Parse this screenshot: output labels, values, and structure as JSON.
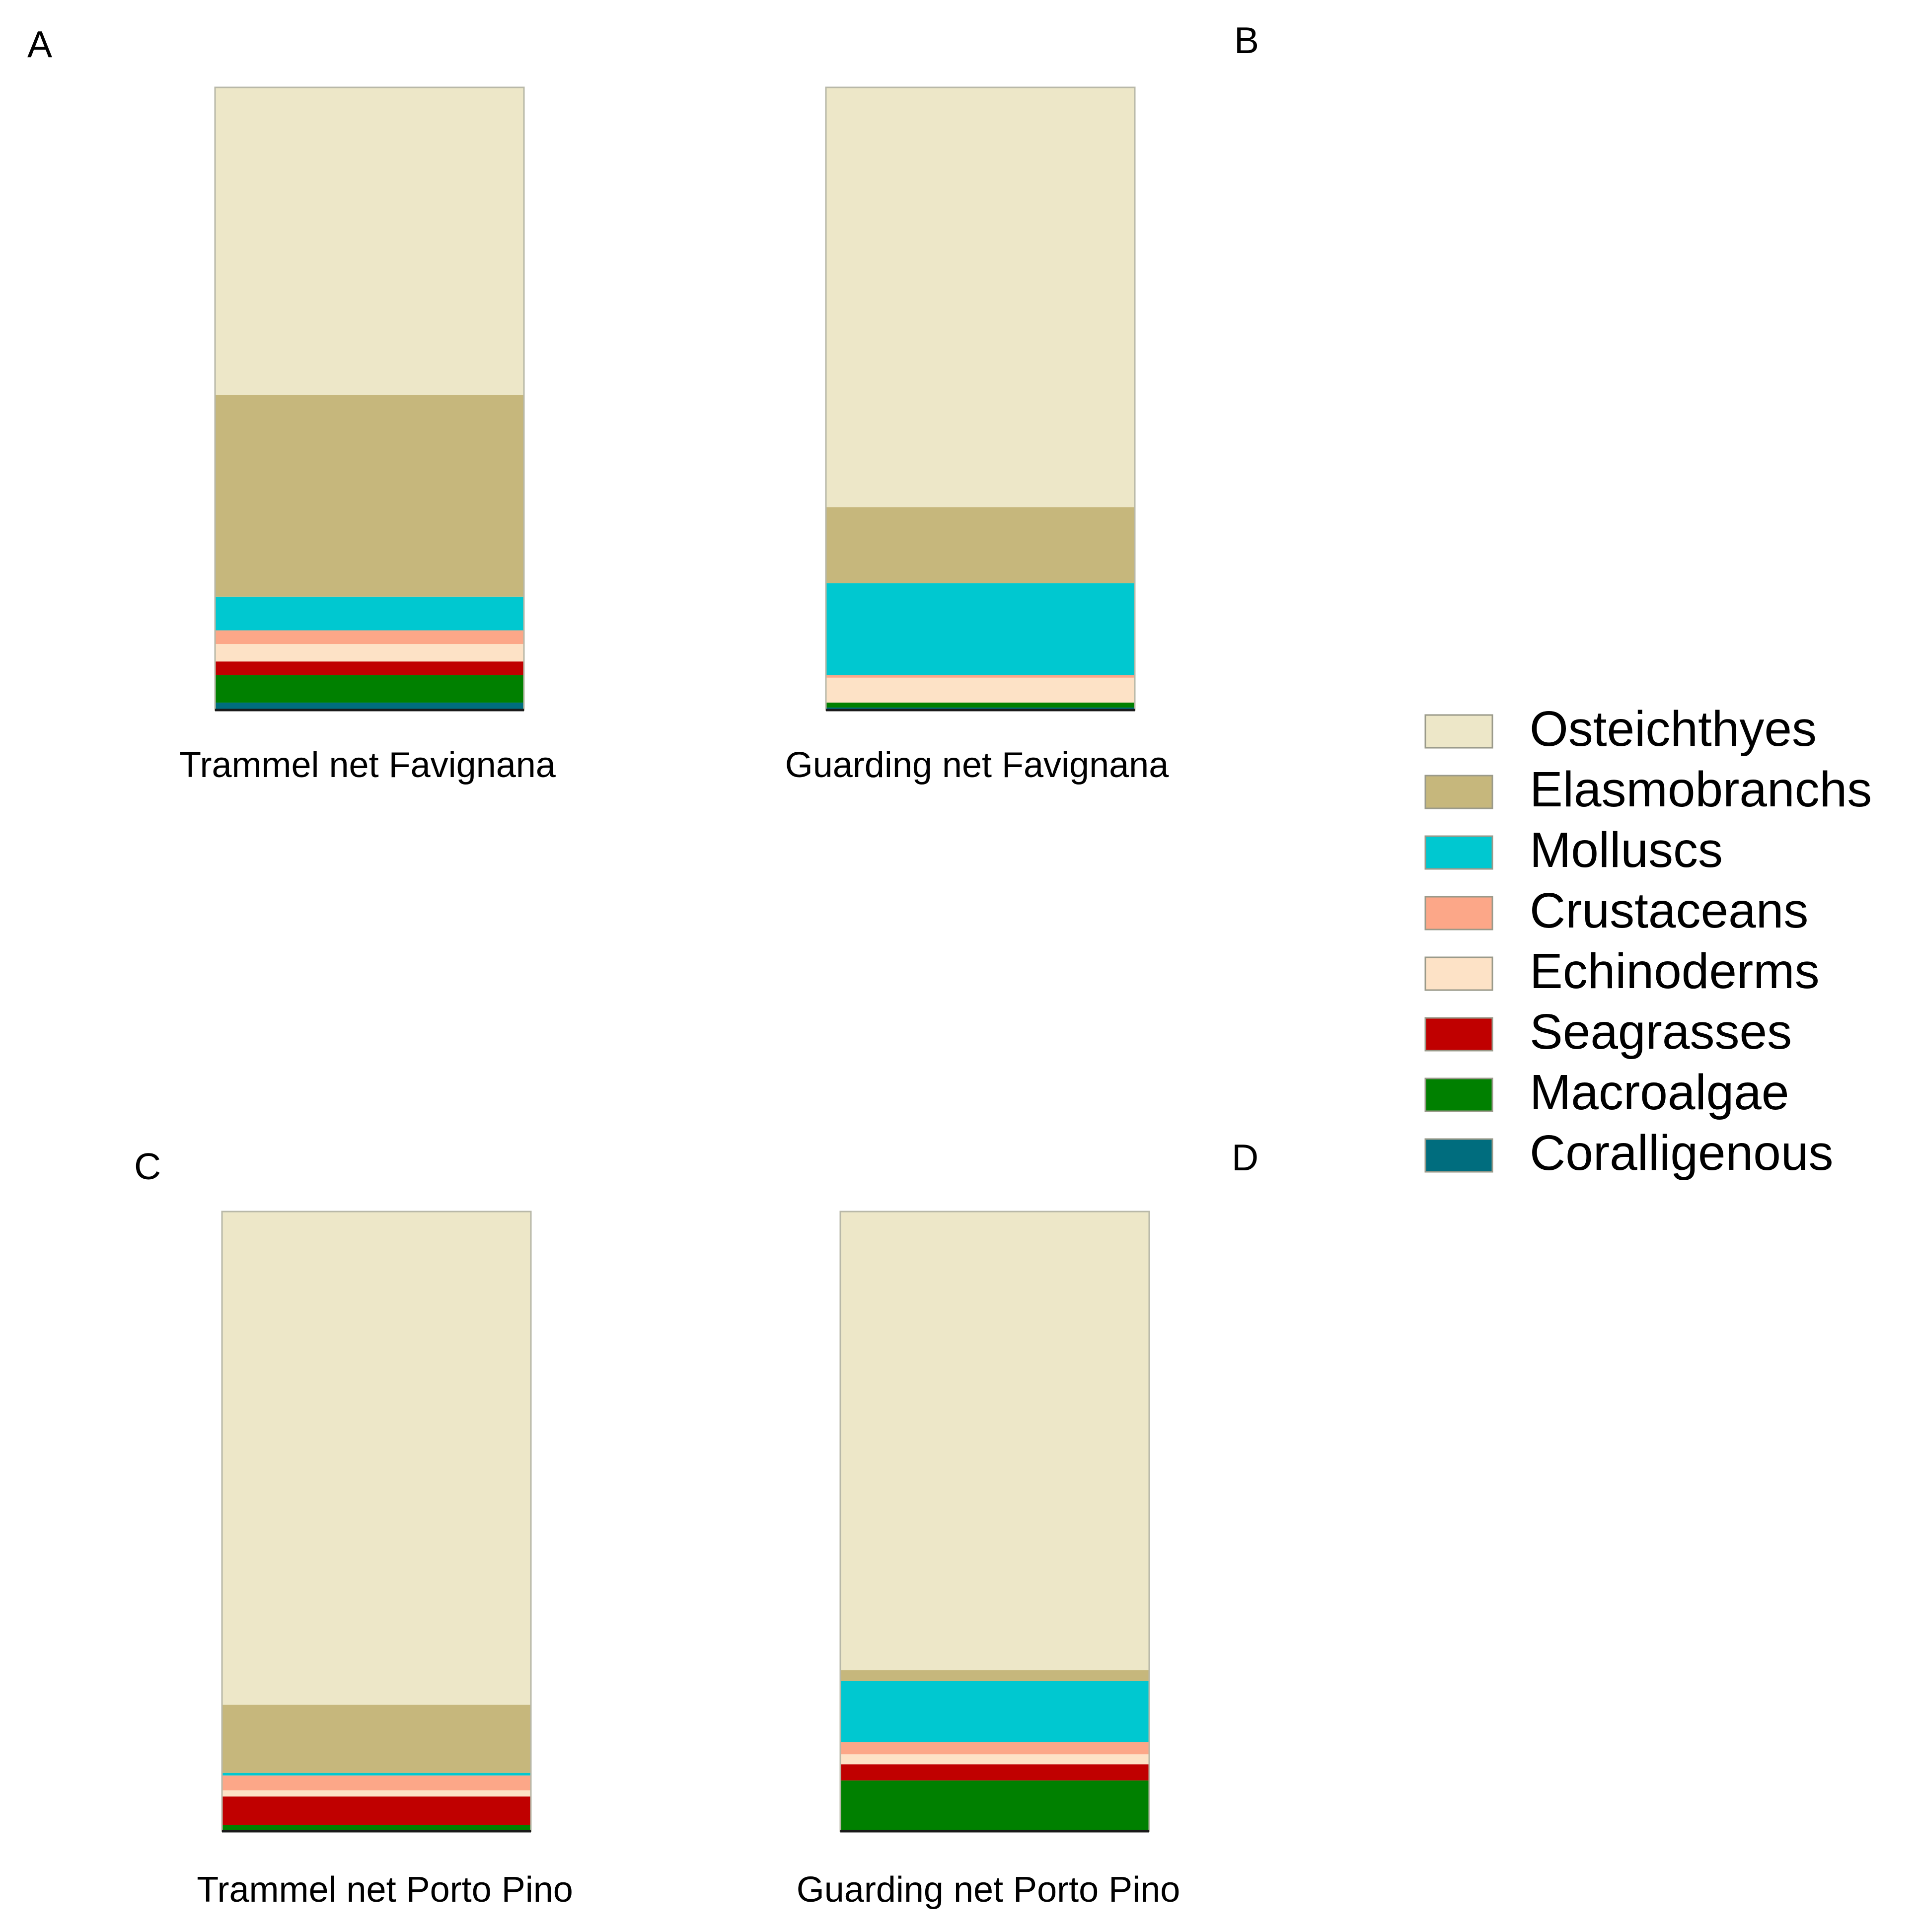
{
  "chart_data": {
    "type": "bar",
    "stacked": true,
    "normalized": true,
    "xlabel": "",
    "ylabel": "",
    "ylim": [
      0,
      100
    ],
    "grid": false,
    "legend_position": "right",
    "categories_order": [
      "Osteichthyes",
      "Elasmobranchs",
      "Molluscs",
      "Crustaceans",
      "Echinoderms",
      "Seagrasses",
      "Macroalgae",
      "Coralligenous"
    ],
    "colors": {
      "Osteichthyes": "#ede7c8",
      "Elasmobranchs": "#c6b77c",
      "Molluscs": "#00c8d0",
      "Crustaceans": "#fca788",
      "Echinoderms": "#fde2c6",
      "Seagrasses": "#c00000",
      "Macroalgae": "#008000",
      "Coralligenous": "#006d7e"
    },
    "panels": [
      {
        "letter": "A",
        "label": "Trammel net Favignana",
        "values": [
          49.4,
          32.4,
          5.4,
          2.2,
          2.8,
          2.2,
          4.4,
          1.2
        ]
      },
      {
        "letter": "B",
        "label": "Guarding net Favignana",
        "values": [
          67.4,
          12.2,
          14.8,
          0.4,
          4.0,
          0.0,
          0.8,
          0.4
        ]
      },
      {
        "letter": "C",
        "label": "Trammel net Porto Pino",
        "values": [
          79.6,
          11.0,
          0.4,
          2.4,
          1.0,
          4.6,
          1.0,
          0.0
        ]
      },
      {
        "letter": "D",
        "label": "Guarding  net Porto Pino",
        "values": [
          74.0,
          1.8,
          9.8,
          2.0,
          1.6,
          2.6,
          8.2,
          0.0
        ]
      }
    ],
    "legend": [
      "Osteichthyes",
      "Elasmobranchs",
      "Molluscs",
      "Crustaceans",
      "Echinoderms",
      "Seagrasses",
      "Macroalgae",
      "Coralligenous"
    ]
  }
}
